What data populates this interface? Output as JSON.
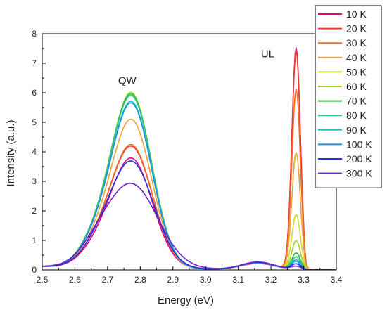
{
  "chart_data": {
    "type": "line",
    "xlabel": "Energy (eV)",
    "ylabel": "Intensity (a.u.)",
    "xlim": [
      2.5,
      3.4
    ],
    "ylim": [
      0,
      8
    ],
    "xticks": [
      "2.5",
      "2.6",
      "2.7",
      "2.8",
      "2.9",
      "3.0",
      "3.1",
      "3.2",
      "3.3",
      "3.4"
    ],
    "yticks": [
      "0",
      "1",
      "2",
      "3",
      "4",
      "5",
      "6",
      "7",
      "8"
    ],
    "grid": false,
    "legend_position": "top-right, outside plot",
    "annotations": [
      {
        "text": "QW",
        "x": 2.76,
        "y": 6.3
      },
      {
        "text": "UL",
        "x": 3.19,
        "y": 7.2
      }
    ],
    "series": [
      {
        "name": "10 K",
        "color": "#e6007e",
        "qw_peak": 3.7,
        "ul_peak": 7.5,
        "qw_width": 0.064,
        "ul_width": 0.013,
        "tail": 0.2
      },
      {
        "name": "20 K",
        "color": "#ef3b2c",
        "qw_peak": 4.1,
        "ul_peak": 7.4,
        "qw_width": 0.064,
        "ul_width": 0.013,
        "tail": 0.22
      },
      {
        "name": "30 K",
        "color": "#f36c21",
        "qw_peak": 4.15,
        "ul_peak": 6.1,
        "qw_width": 0.064,
        "ul_width": 0.013,
        "tail": 0.22
      },
      {
        "name": "40 K",
        "color": "#e8a33b",
        "qw_peak": 5.0,
        "ul_peak": 3.95,
        "qw_width": 0.062,
        "ul_width": 0.013,
        "tail": 0.22
      },
      {
        "name": "50 K",
        "color": "#d8d92a",
        "qw_peak": 5.85,
        "ul_peak": 1.85,
        "qw_width": 0.062,
        "ul_width": 0.013,
        "tail": 0.22
      },
      {
        "name": "60 K",
        "color": "#9bd12a",
        "qw_peak": 5.9,
        "ul_peak": 0.97,
        "qw_width": 0.062,
        "ul_width": 0.013,
        "tail": 0.22
      },
      {
        "name": "70 K",
        "color": "#2ebf2e",
        "qw_peak": 5.85,
        "ul_peak": 0.55,
        "qw_width": 0.062,
        "ul_width": 0.013,
        "tail": 0.22
      },
      {
        "name": "80 K",
        "color": "#2ec48a",
        "qw_peak": 5.8,
        "ul_peak": 0.42,
        "qw_width": 0.062,
        "ul_width": 0.013,
        "tail": 0.22
      },
      {
        "name": "90 K",
        "color": "#1fbfbf",
        "qw_peak": 5.6,
        "ul_peak": 0.32,
        "qw_width": 0.062,
        "ul_width": 0.013,
        "tail": 0.22
      },
      {
        "name": "100 K",
        "color": "#1f8fe6",
        "qw_peak": 5.55,
        "ul_peak": 0.27,
        "qw_width": 0.062,
        "ul_width": 0.013,
        "tail": 0.22
      },
      {
        "name": "200 K",
        "color": "#2233dd",
        "qw_peak": 3.6,
        "ul_peak": 0.18,
        "qw_width": 0.068,
        "ul_width": 0.014,
        "tail": 0.24
      },
      {
        "name": "300 K",
        "color": "#6a1fc7",
        "qw_peak": 2.85,
        "ul_peak": 0.1,
        "qw_width": 0.08,
        "ul_width": 0.015,
        "tail": 0.25
      }
    ]
  }
}
